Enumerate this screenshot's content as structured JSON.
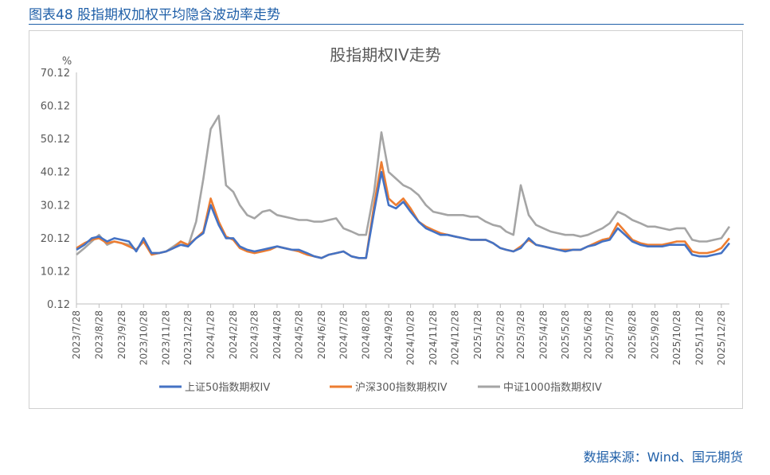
{
  "figure": {
    "caption": "图表48 股指期权加权平均隐含波动率走势",
    "source": "数据来源：Wind、国元期货"
  },
  "chart_data": {
    "type": "line",
    "title": "股指期权IV走势",
    "ylabel": "%",
    "xlabel": "",
    "ylim": [
      0.12,
      70.12
    ],
    "yticks": [
      "0.12",
      "10.12",
      "20.12",
      "30.12",
      "40.12",
      "50.12",
      "60.12",
      "70.12"
    ],
    "xticks": [
      "2023/7/28",
      "2023/8/28",
      "2023/9/28",
      "2023/10/28",
      "2023/11/28",
      "2023/12/28",
      "2024/1/28",
      "2024/2/28",
      "2024/3/28",
      "2024/4/28",
      "2024/5/28",
      "2024/6/28",
      "2024/7/28",
      "2024/8/28",
      "2024/9/28",
      "2024/10/28",
      "2024/11/28",
      "2024/12/28",
      "2025/1/28",
      "2025/2/28",
      "2025/3/28",
      "2025/4/28",
      "2025/5/28",
      "2025/6/28",
      "2025/7/28",
      "2025/8/28",
      "2025/9/28",
      "2025/10/28",
      "2025/11/28",
      "2025/12/28"
    ],
    "legend_position": "bottom",
    "grid": false,
    "x": [
      "2023/7/28",
      "2023/8/8",
      "2023/8/18",
      "2023/8/28",
      "2023/9/8",
      "2023/9/18",
      "2023/9/28",
      "2023/10/8",
      "2023/10/18",
      "2023/10/28",
      "2023/11/8",
      "2023/11/18",
      "2023/11/28",
      "2023/12/8",
      "2023/12/18",
      "2023/12/28",
      "2024/1/8",
      "2024/1/18",
      "2024/1/28",
      "2024/2/8",
      "2024/2/18",
      "2024/2/28",
      "2024/3/8",
      "2024/3/18",
      "2024/3/28",
      "2024/4/8",
      "2024/4/18",
      "2024/4/28",
      "2024/5/8",
      "2024/5/18",
      "2024/5/28",
      "2024/6/8",
      "2024/6/18",
      "2024/6/28",
      "2024/7/8",
      "2024/7/18",
      "2024/7/28",
      "2024/8/8",
      "2024/8/18",
      "2024/8/28",
      "2024/9/8",
      "2024/9/18",
      "2024/9/28",
      "2024/10/8",
      "2024/10/18",
      "2024/10/28",
      "2024/11/8",
      "2024/11/18",
      "2024/11/28",
      "2024/12/8",
      "2024/12/18",
      "2024/12/28",
      "2025/1/8",
      "2025/1/18",
      "2025/1/28",
      "2025/2/8",
      "2025/2/18",
      "2025/2/28",
      "2025/3/8",
      "2025/3/18",
      "2025/3/28",
      "2025/4/8",
      "2025/4/18",
      "2025/4/28",
      "2025/5/8",
      "2025/5/18",
      "2025/5/28",
      "2025/6/8",
      "2025/6/18",
      "2025/6/28",
      "2025/7/8",
      "2025/7/18",
      "2025/7/28",
      "2025/8/8",
      "2025/8/18",
      "2025/8/28",
      "2025/9/8",
      "2025/9/18",
      "2025/9/28",
      "2025/10/8",
      "2025/10/18",
      "2025/10/28",
      "2025/11/8",
      "2025/11/18",
      "2025/11/28",
      "2025/12/8",
      "2025/12/18",
      "2025/12/28",
      "2026/1/8"
    ],
    "series": [
      {
        "name": "上证50指数期权IV",
        "color": "#4472c4",
        "values": [
          16.5,
          18,
          20,
          20.5,
          19,
          20,
          19.5,
          19,
          16,
          20,
          15.5,
          15.5,
          16,
          17,
          18,
          17.5,
          20,
          21.5,
          30,
          24,
          20,
          20,
          17.5,
          16.5,
          16,
          16.5,
          17,
          17.5,
          17,
          16.5,
          16.5,
          15.5,
          14.5,
          14,
          15,
          15.5,
          16,
          14.5,
          14,
          14,
          28,
          40,
          30,
          29,
          31,
          28,
          25,
          23,
          22,
          21,
          21,
          20.5,
          20,
          19.5,
          19.5,
          19.5,
          18.5,
          17,
          16.5,
          16,
          17,
          20,
          18,
          17.5,
          17,
          16.5,
          16,
          16.5,
          16.5,
          17.5,
          18,
          19,
          19.5,
          23,
          21,
          19,
          18,
          17.5,
          17.5,
          17.5,
          18,
          18,
          18,
          15,
          14.5,
          14.5,
          15,
          15.5,
          18.5
        ]
      },
      {
        "name": "沪深300指数期权IV",
        "color": "#ed7d31",
        "values": [
          17,
          18.5,
          19.5,
          20,
          18.5,
          19,
          18.5,
          17.5,
          16.5,
          19,
          15,
          15.5,
          16,
          17,
          19,
          18,
          20,
          22,
          32,
          25,
          20.5,
          19.5,
          17,
          16,
          15.5,
          16,
          16.5,
          17.5,
          17,
          16.5,
          16,
          15,
          14.5,
          14,
          15,
          15.5,
          16,
          14.5,
          14,
          14,
          30,
          43,
          32,
          30,
          32,
          29,
          25,
          23.5,
          22.5,
          21.5,
          21,
          20.5,
          20,
          19.5,
          19.5,
          19.5,
          18.5,
          17,
          16.5,
          16,
          17.5,
          19.5,
          18,
          17.5,
          17,
          16.5,
          16.5,
          16.5,
          16.5,
          17.5,
          18.5,
          19.5,
          20,
          24.5,
          22,
          19.5,
          18.5,
          18,
          18,
          18,
          18.5,
          19,
          19,
          16,
          15.5,
          15.5,
          16,
          17,
          20
        ]
      },
      {
        "name": "中证1000指数期权IV",
        "color": "#a5a5a5",
        "values": [
          15,
          17,
          19,
          21,
          18,
          19,
          18.5,
          18,
          16.5,
          19,
          15.5,
          15.5,
          16,
          17.5,
          19,
          17.5,
          25,
          38,
          53,
          57,
          36,
          34,
          30,
          27,
          26,
          28,
          28.5,
          27,
          26.5,
          26,
          25.5,
          25.5,
          25,
          25,
          25.5,
          26,
          23,
          22,
          21,
          21,
          34,
          52,
          40,
          38,
          36,
          35,
          33,
          30,
          28,
          27.5,
          27,
          27,
          27,
          26.5,
          26.5,
          25,
          24,
          23.5,
          22,
          21,
          36,
          27,
          24,
          23,
          22,
          21.5,
          21,
          21,
          20.5,
          21,
          22,
          23,
          24.5,
          28,
          27,
          25.5,
          24.5,
          23.5,
          23.5,
          23,
          22.5,
          23,
          23,
          19.5,
          19,
          19,
          19.5,
          20,
          23.5
        ]
      }
    ]
  }
}
